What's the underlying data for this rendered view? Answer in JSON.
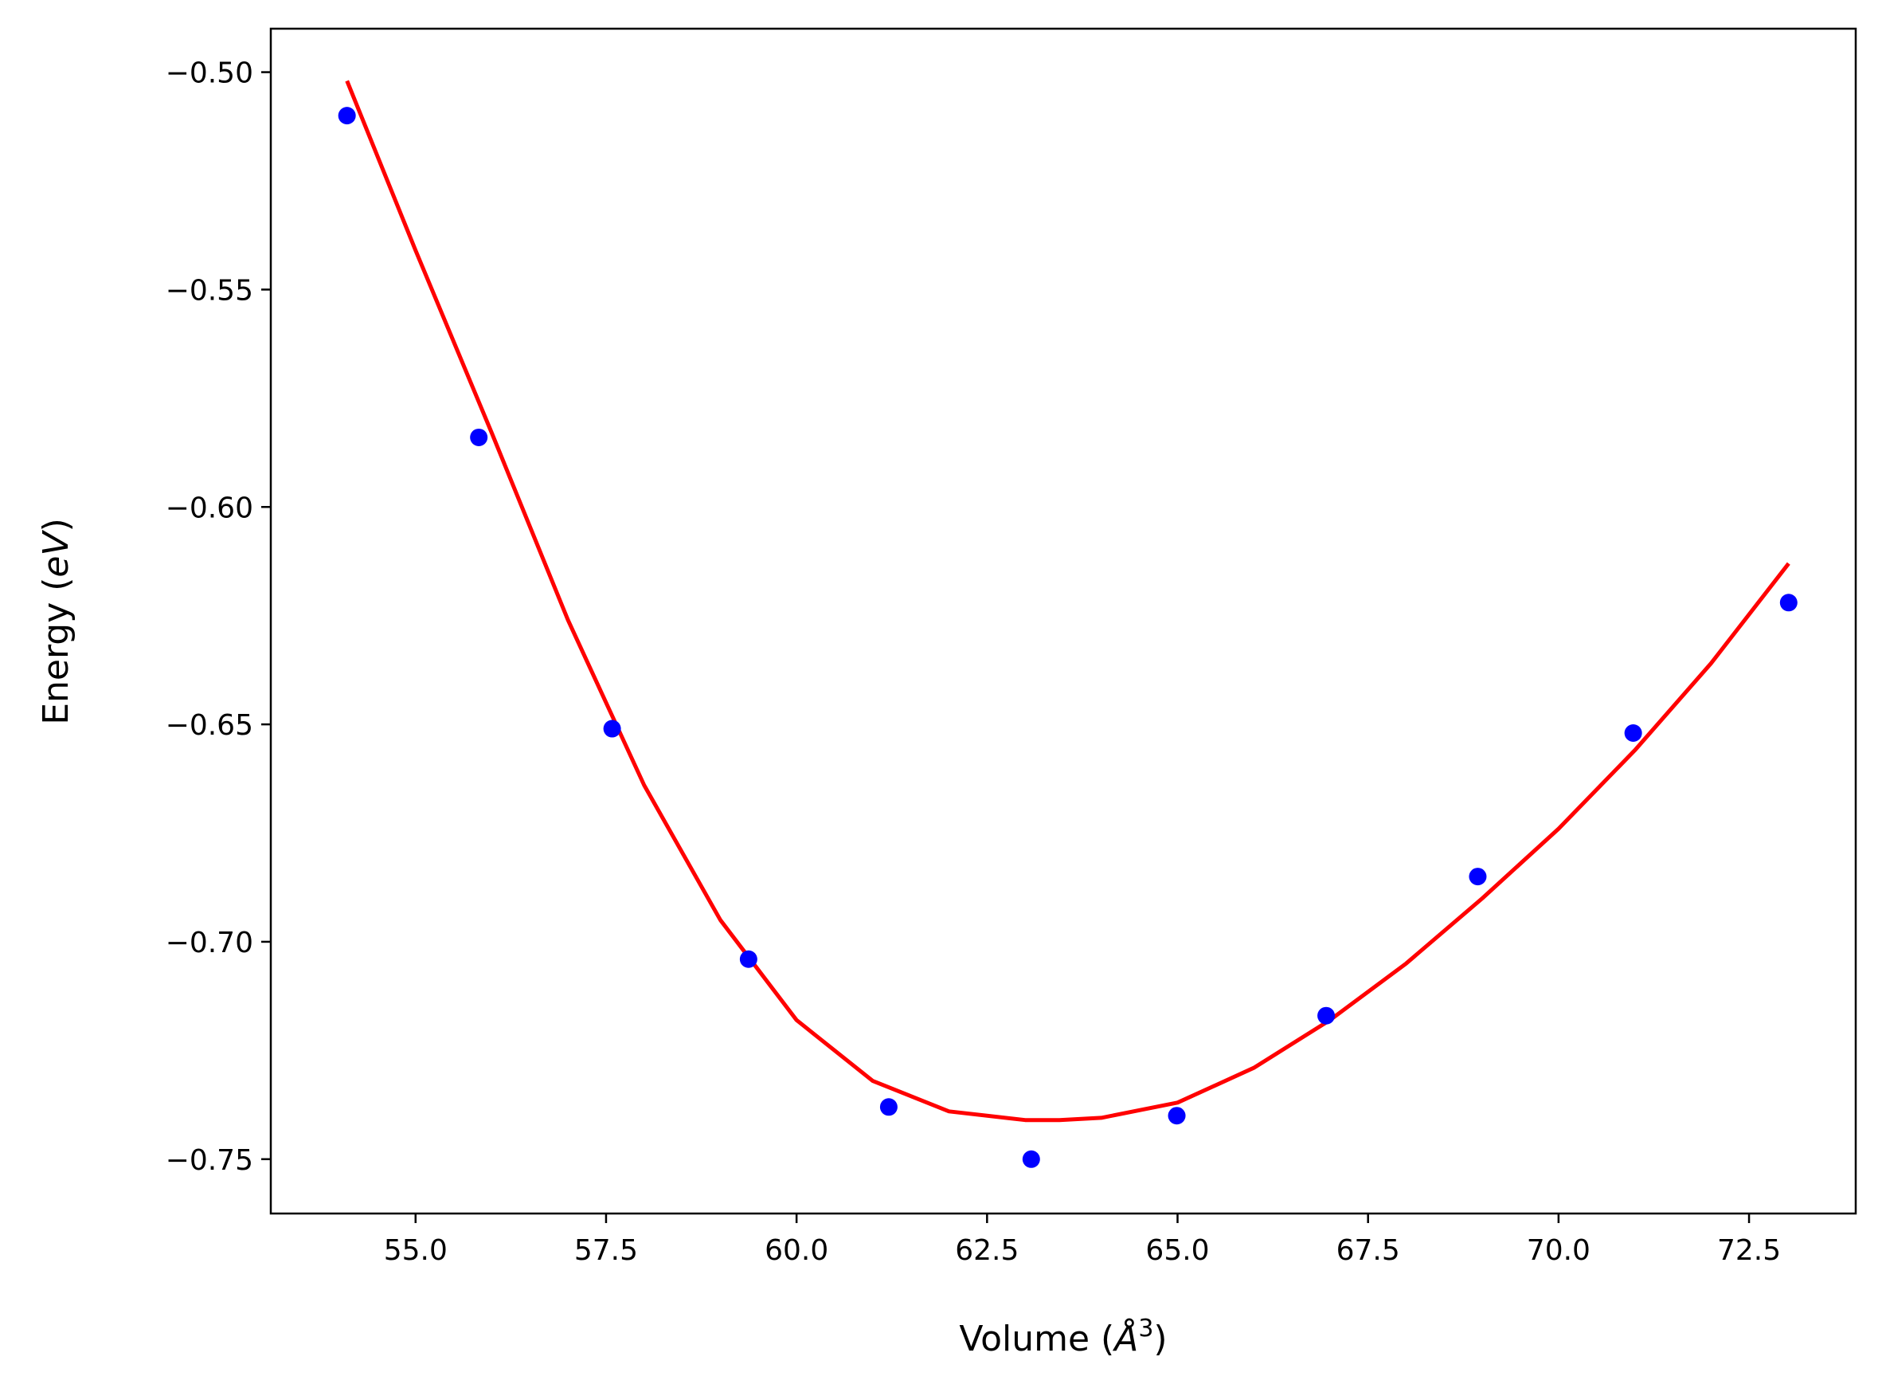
{
  "chart_data": {
    "type": "scatter",
    "title": "",
    "xlabel": "Volume (",
    "xlabel_symbol": "Å",
    "xlabel_exp": "3",
    "xlabel_close": ")",
    "ylabel": "Energy (",
    "ylabel_unit": "eV",
    "ylabel_close": ")",
    "xlim": [
      53.1,
      73.9
    ],
    "ylim": [
      -0.7625,
      -0.49
    ],
    "xticks": [
      55.0,
      57.5,
      60.0,
      62.5,
      65.0,
      67.5,
      70.0,
      72.5
    ],
    "xtick_labels": [
      "55.0",
      "57.5",
      "60.0",
      "62.5",
      "65.0",
      "67.5",
      "70.0",
      "72.5"
    ],
    "yticks": [
      -0.5,
      -0.55,
      -0.6,
      -0.65,
      -0.7,
      -0.75
    ],
    "ytick_labels": [
      "−0.50",
      "−0.55",
      "−0.60",
      "−0.65",
      "−0.70",
      "−0.75"
    ],
    "grid": false,
    "series": [
      {
        "kind": "scatter",
        "color": "#0000ff",
        "x": [
          54.1,
          55.83,
          57.58,
          59.37,
          61.21,
          63.08,
          64.99,
          66.95,
          68.94,
          70.98,
          73.02
        ],
        "y": [
          -0.51,
          -0.584,
          -0.651,
          -0.704,
          -0.738,
          -0.75,
          -0.74,
          -0.717,
          -0.685,
          -0.652,
          -0.622
        ]
      },
      {
        "kind": "line",
        "color": "#ff0000",
        "x": [
          54.1,
          55.0,
          56.0,
          57.0,
          58.0,
          59.0,
          60.0,
          61.0,
          62.0,
          63.0,
          63.45,
          64.0,
          65.0,
          66.0,
          67.0,
          68.0,
          69.0,
          70.0,
          71.0,
          72.0,
          73.02
        ],
        "y": [
          -0.502,
          -0.541,
          -0.583,
          -0.626,
          -0.664,
          -0.695,
          -0.718,
          -0.732,
          -0.739,
          -0.741,
          -0.741,
          -0.7405,
          -0.737,
          -0.729,
          -0.718,
          -0.705,
          -0.69,
          -0.674,
          -0.656,
          -0.636,
          -0.613
        ]
      }
    ]
  }
}
